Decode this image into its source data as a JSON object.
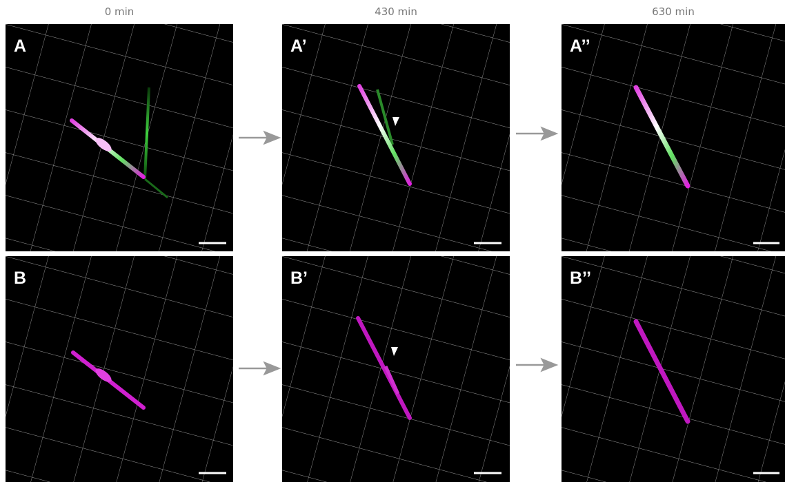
{
  "columns": [
    "0 min",
    "430 min",
    "630 min"
  ],
  "panels": [
    [
      "A",
      "A’",
      "A’’"
    ],
    [
      "B",
      "B’",
      "B’’"
    ]
  ]
}
